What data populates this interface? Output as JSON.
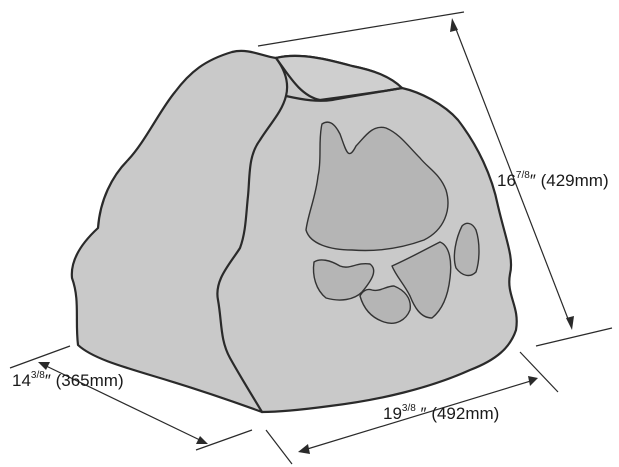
{
  "dimensions": {
    "height": {
      "whole": "16",
      "fraction": "7/8",
      "inch_mark": "″",
      "metric": "(429mm)"
    },
    "depth": {
      "whole": "14",
      "fraction": "3/8",
      "inch_mark": "″",
      "metric": "(365mm)"
    },
    "width": {
      "whole": "19",
      "fraction": "3/8",
      "inch_mark": " ″",
      "metric": "(492mm)"
    }
  },
  "colors": {
    "rock_fill": "#c9c9c9",
    "grille_fill": "#b5b5b5",
    "outline": "#2a2a2a"
  }
}
